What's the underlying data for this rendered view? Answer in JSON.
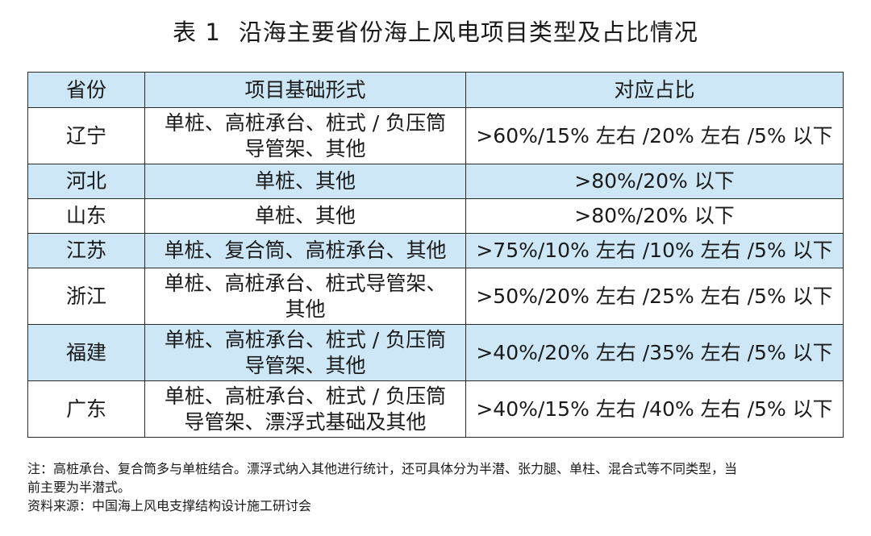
{
  "title": {
    "number": "表 1",
    "text": "沿海主要省份海上风电项目类型及占比情况"
  },
  "table": {
    "headers": [
      "省份",
      "项目基础形式",
      "对应占比"
    ],
    "rows": [
      {
        "province": "辽宁",
        "types_line1": "单桩、高桩承台、桩式 / 负压筒",
        "types_line2": "导管架、其他",
        "ratio": ">60%/15% 左右 /20% 左右 /5% 以下"
      },
      {
        "province": "河北",
        "types_line1": "单桩、其他",
        "types_line2": "",
        "ratio": ">80%/20% 以下"
      },
      {
        "province": "山东",
        "types_line1": "单桩、其他",
        "types_line2": "",
        "ratio": ">80%/20% 以下"
      },
      {
        "province": "江苏",
        "types_line1": "单桩、复合筒、高桩承台、其他",
        "types_line2": "",
        "ratio": ">75%/10% 左右 /10% 左右 /5% 以下"
      },
      {
        "province": "浙江",
        "types_line1": "单桩、高桩承台、桩式导管架、",
        "types_line2": "其他",
        "ratio": ">50%/20% 左右 /25% 左右 /5% 以下"
      },
      {
        "province": "福建",
        "types_line1": "单桩、高桩承台、桩式 / 负压筒",
        "types_line2": "导管架、其他",
        "ratio": ">40%/20% 左右 /35% 左右 /5% 以下"
      },
      {
        "province": "广东",
        "types_line1": "单桩、高桩承台、桩式 / 负压筒",
        "types_line2": "导管架、漂浮式基础及其他",
        "ratio": ">40%/15% 左右 /40% 左右 /5% 以下"
      }
    ]
  },
  "notes": {
    "note_line1": "注：高桩承台、复合筒多与单桩结合。漂浮式纳入其他进行统计，还可具体分为半潜、张力腿、单柱、混合式等不同类型，当",
    "note_line2": "前主要为半潜式。",
    "source": "资料来源：中国海上风电支撑结构设计施工研讨会"
  },
  "colors": {
    "shaded_row": "#cde7f6",
    "border": "#2b2b2b",
    "text": "#1a1a1a"
  }
}
